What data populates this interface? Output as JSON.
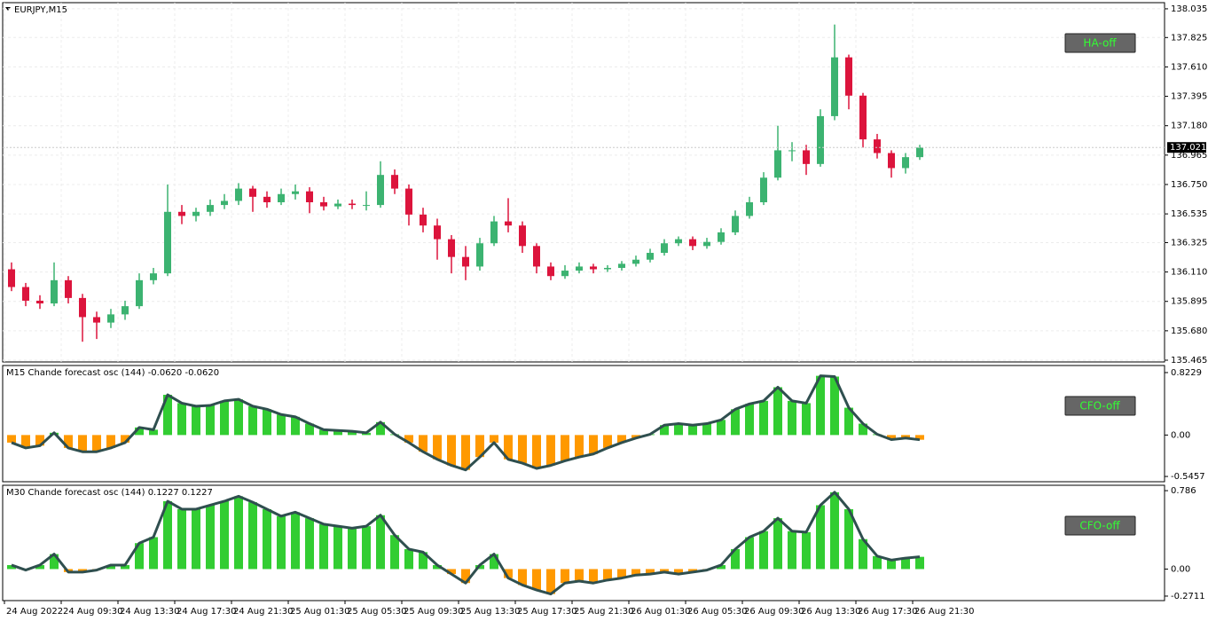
{
  "chart_data": [
    {
      "type": "candlestick",
      "title": "EURJPY,M15",
      "button": "HA-off",
      "categories": [
        "24 Aug 2022",
        null,
        null,
        null,
        "24 Aug 09:30",
        null,
        null,
        null,
        "24 Aug 13:30",
        null,
        null,
        null,
        "24 Aug 17:30",
        null,
        null,
        null,
        "24 Aug 21:30",
        null,
        null,
        null,
        "25 Aug 01:30",
        null,
        null,
        null,
        "25 Aug 05:30",
        null,
        null,
        null,
        "25 Aug 09:30",
        null,
        null,
        null,
        "25 Aug 13:30",
        null,
        null,
        null,
        "25 Aug 17:30",
        null,
        null,
        null,
        "25 Aug 21:30",
        null,
        null,
        null,
        "26 Aug 01:30",
        null,
        null,
        null,
        "26 Aug 05:30",
        null,
        null,
        null,
        "26 Aug 09:30",
        null,
        null,
        null,
        "26 Aug 13:30",
        null,
        null,
        null,
        "26 Aug 17:30",
        null,
        null,
        null,
        "26 Aug 21:30"
      ],
      "open": [
        136.13,
        136.0,
        135.9,
        135.88,
        136.05,
        135.92,
        135.78,
        135.74,
        135.8,
        135.86,
        136.05,
        136.1,
        136.55,
        136.52,
        136.55,
        136.6,
        136.63,
        136.72,
        136.66,
        136.62,
        136.68,
        136.7,
        136.62,
        136.59,
        136.61,
        136.6,
        136.6,
        136.82,
        136.72,
        136.53,
        136.45,
        136.35,
        136.22,
        136.15,
        136.32,
        136.48,
        136.45,
        136.3,
        136.15,
        136.08,
        136.12,
        136.15,
        136.13,
        136.14,
        136.17,
        136.2,
        136.25,
        136.32,
        136.35,
        136.3,
        136.33,
        136.4,
        136.52,
        136.62,
        136.8,
        137.0,
        137.0,
        136.9,
        137.25,
        137.68,
        137.4,
        137.08,
        136.98,
        136.87,
        136.95
      ],
      "high": [
        136.18,
        136.03,
        135.94,
        136.18,
        136.08,
        135.95,
        135.82,
        135.84,
        135.9,
        136.1,
        136.14,
        136.75,
        136.6,
        136.58,
        136.64,
        136.68,
        136.76,
        136.74,
        136.7,
        136.72,
        136.75,
        136.73,
        136.66,
        136.64,
        136.64,
        136.7,
        136.92,
        136.86,
        136.75,
        136.58,
        136.5,
        136.38,
        136.3,
        136.36,
        136.52,
        136.65,
        136.48,
        136.32,
        136.18,
        136.16,
        136.18,
        136.17,
        136.16,
        136.19,
        136.23,
        136.28,
        136.35,
        136.37,
        136.37,
        136.36,
        136.43,
        136.56,
        136.66,
        136.84,
        137.18,
        137.06,
        137.04,
        137.3,
        137.92,
        137.7,
        137.42,
        137.12,
        137.0,
        136.98,
        137.04
      ],
      "low": [
        135.97,
        135.86,
        135.84,
        135.86,
        135.88,
        135.6,
        135.62,
        135.7,
        135.76,
        135.84,
        136.02,
        136.08,
        136.46,
        136.48,
        136.52,
        136.57,
        136.6,
        136.55,
        136.58,
        136.6,
        136.64,
        136.54,
        136.56,
        136.57,
        136.57,
        136.56,
        136.58,
        136.68,
        136.45,
        136.4,
        136.2,
        136.1,
        136.05,
        136.12,
        136.3,
        136.4,
        136.25,
        136.1,
        136.05,
        136.06,
        136.1,
        136.1,
        136.11,
        136.12,
        136.15,
        136.18,
        136.23,
        136.3,
        136.27,
        136.28,
        136.31,
        136.38,
        136.5,
        136.6,
        136.78,
        136.92,
        136.82,
        136.88,
        137.22,
        137.3,
        137.02,
        136.94,
        136.8,
        136.83,
        136.93
      ],
      "close": [
        136.0,
        135.9,
        135.88,
        136.05,
        135.92,
        135.78,
        135.74,
        135.8,
        135.86,
        136.05,
        136.1,
        136.55,
        136.52,
        136.55,
        136.6,
        136.63,
        136.72,
        136.66,
        136.62,
        136.68,
        136.7,
        136.62,
        136.59,
        136.61,
        136.6,
        136.6,
        136.82,
        136.72,
        136.53,
        136.45,
        136.35,
        136.22,
        136.15,
        136.32,
        136.48,
        136.45,
        136.3,
        136.15,
        136.08,
        136.12,
        136.15,
        136.13,
        136.14,
        136.17,
        136.2,
        136.25,
        136.32,
        136.35,
        136.3,
        136.33,
        136.4,
        136.52,
        136.62,
        136.8,
        137.0,
        137.0,
        136.9,
        137.25,
        137.68,
        137.4,
        137.08,
        136.98,
        136.87,
        136.95,
        137.02
      ],
      "up_color": "#3cb371",
      "down_color": "#dc143c",
      "last_price": 137.021,
      "ylim": [
        135.452,
        138.08
      ],
      "yticks": [
        138.035,
        137.825,
        {
          "value": 137.61,
          "label": "137.610"
        },
        137.395,
        {
          "value": 137.18,
          "label": "137.180"
        },
        136.965,
        {
          "value": 136.75,
          "label": "136.750"
        },
        136.535,
        136.325,
        {
          "value": 136.11,
          "label": "136.110"
        },
        135.895,
        {
          "value": 135.68,
          "label": "135.680"
        },
        135.465
      ],
      "grid": true
    },
    {
      "type": "oscillator",
      "title": "M15 Chande forecast osc (144) -0.0620 -0.0620",
      "button": "CFO-off",
      "values": [
        -0.1,
        -0.17,
        -0.14,
        0.03,
        -0.17,
        -0.22,
        -0.22,
        -0.17,
        -0.1,
        0.1,
        0.07,
        0.53,
        0.42,
        0.38,
        0.39,
        0.45,
        0.47,
        0.38,
        0.34,
        0.27,
        0.24,
        0.15,
        0.07,
        0.06,
        0.05,
        0.03,
        0.17,
        0.01,
        -0.1,
        -0.22,
        -0.32,
        -0.4,
        -0.46,
        -0.29,
        -0.1,
        -0.32,
        -0.37,
        -0.44,
        -0.4,
        -0.34,
        -0.29,
        -0.25,
        -0.17,
        -0.1,
        -0.04,
        0.01,
        0.13,
        0.15,
        0.13,
        0.15,
        0.2,
        0.34,
        0.41,
        0.45,
        0.63,
        0.45,
        0.42,
        0.78,
        0.77,
        0.36,
        0.15,
        0.01,
        -0.06,
        -0.04,
        -0.062
      ],
      "up_color": "#32cd32",
      "down_color": "#ff9900",
      "line_color": "#2f4f4f",
      "ylim": [
        -0.615,
        0.916
      ],
      "yticks": [
        0.8229,
        {
          "value": 0,
          "label": "0.00"
        },
        -0.5457
      ],
      "grid": false
    },
    {
      "type": "oscillator",
      "title": "M30 Chande forecast osc (144) 0.1227 0.1227",
      "button": "CFO-off",
      "values": [
        0.04,
        -0.01,
        0.04,
        0.15,
        -0.03,
        -0.03,
        -0.01,
        0.04,
        0.04,
        0.26,
        0.32,
        0.68,
        0.6,
        0.6,
        0.64,
        0.68,
        0.73,
        0.67,
        0.6,
        0.53,
        0.57,
        0.51,
        0.45,
        0.43,
        0.41,
        0.43,
        0.54,
        0.34,
        0.2,
        0.17,
        0.04,
        -0.05,
        -0.14,
        0.04,
        0.15,
        -0.09,
        -0.16,
        -0.21,
        -0.25,
        -0.14,
        -0.12,
        -0.14,
        -0.11,
        -0.09,
        -0.06,
        -0.05,
        -0.03,
        -0.05,
        -0.03,
        -0.01,
        0.04,
        0.2,
        0.32,
        0.38,
        0.51,
        0.38,
        0.37,
        0.64,
        0.77,
        0.6,
        0.3,
        0.13,
        0.09,
        0.11,
        0.1227
      ],
      "up_color": "#32cd32",
      "down_color": "#ff9900",
      "line_color": "#2f4f4f",
      "ylim": [
        -0.316,
        0.84
      ],
      "yticks": [
        0.786,
        {
          "value": 0,
          "label": "0.00"
        },
        -0.2711
      ],
      "grid": false
    }
  ]
}
